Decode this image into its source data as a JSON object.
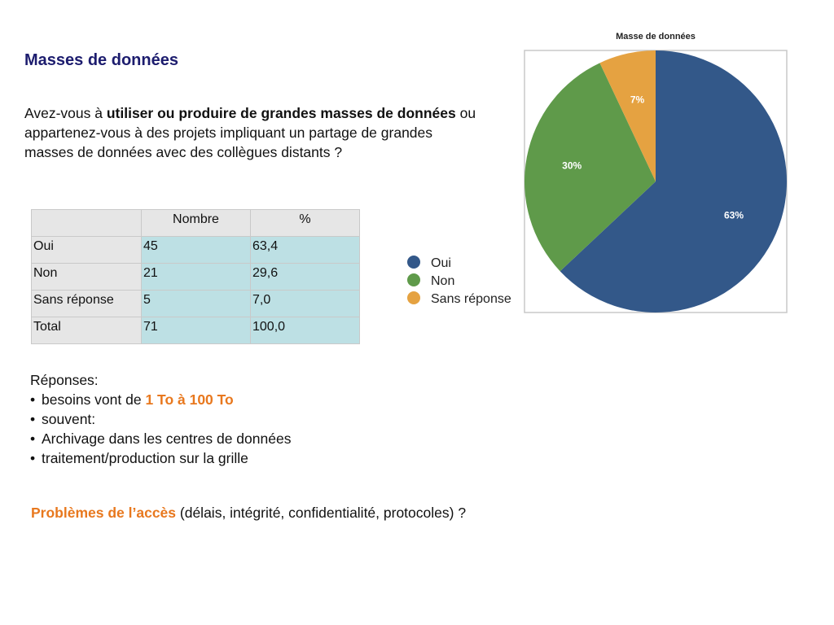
{
  "slide": {
    "title": "Masses de données",
    "question": {
      "part1": "Avez-vous à ",
      "bold": "utiliser ou produire de grandes masses de données",
      "part2": " ou appartenez-vous à des projets impliquant un partage de grandes masses de données avec des collègues distants ?"
    },
    "table": {
      "headers": [
        "",
        "Nombre",
        "%"
      ],
      "rows": [
        [
          "Oui",
          "45",
          "63,4"
        ],
        [
          "Non",
          "21",
          "29,6"
        ],
        [
          "Sans réponse",
          "5",
          "7,0"
        ],
        [
          "Total",
          "71",
          "100,0"
        ]
      ]
    },
    "answers": {
      "heading": "Réponses:",
      "bullet_glyph": "•",
      "items": [
        {
          "text": "besoins vont de ",
          "highlight": "1 To à 100 To"
        },
        {
          "text": "souvent:",
          "highlight": ""
        },
        {
          "text": "Archivage dans les centres de données",
          "highlight": ""
        },
        {
          "text": "traitement/production sur la grille",
          "highlight": ""
        }
      ]
    },
    "access": {
      "highlight": "Problèmes de l’accès",
      "rest": " (délais, intégrité, confidentialité, protocoles) ?"
    }
  },
  "chart_data": {
    "type": "pie",
    "title": "Masse de données",
    "categories": [
      "Oui",
      "Non",
      "Sans réponse"
    ],
    "values": [
      63,
      30,
      7
    ],
    "labels": [
      "63%",
      "30%",
      "7%"
    ],
    "colors": [
      "#335889",
      "#5f9a4a",
      "#e5a241"
    ],
    "legend_position": "left"
  }
}
